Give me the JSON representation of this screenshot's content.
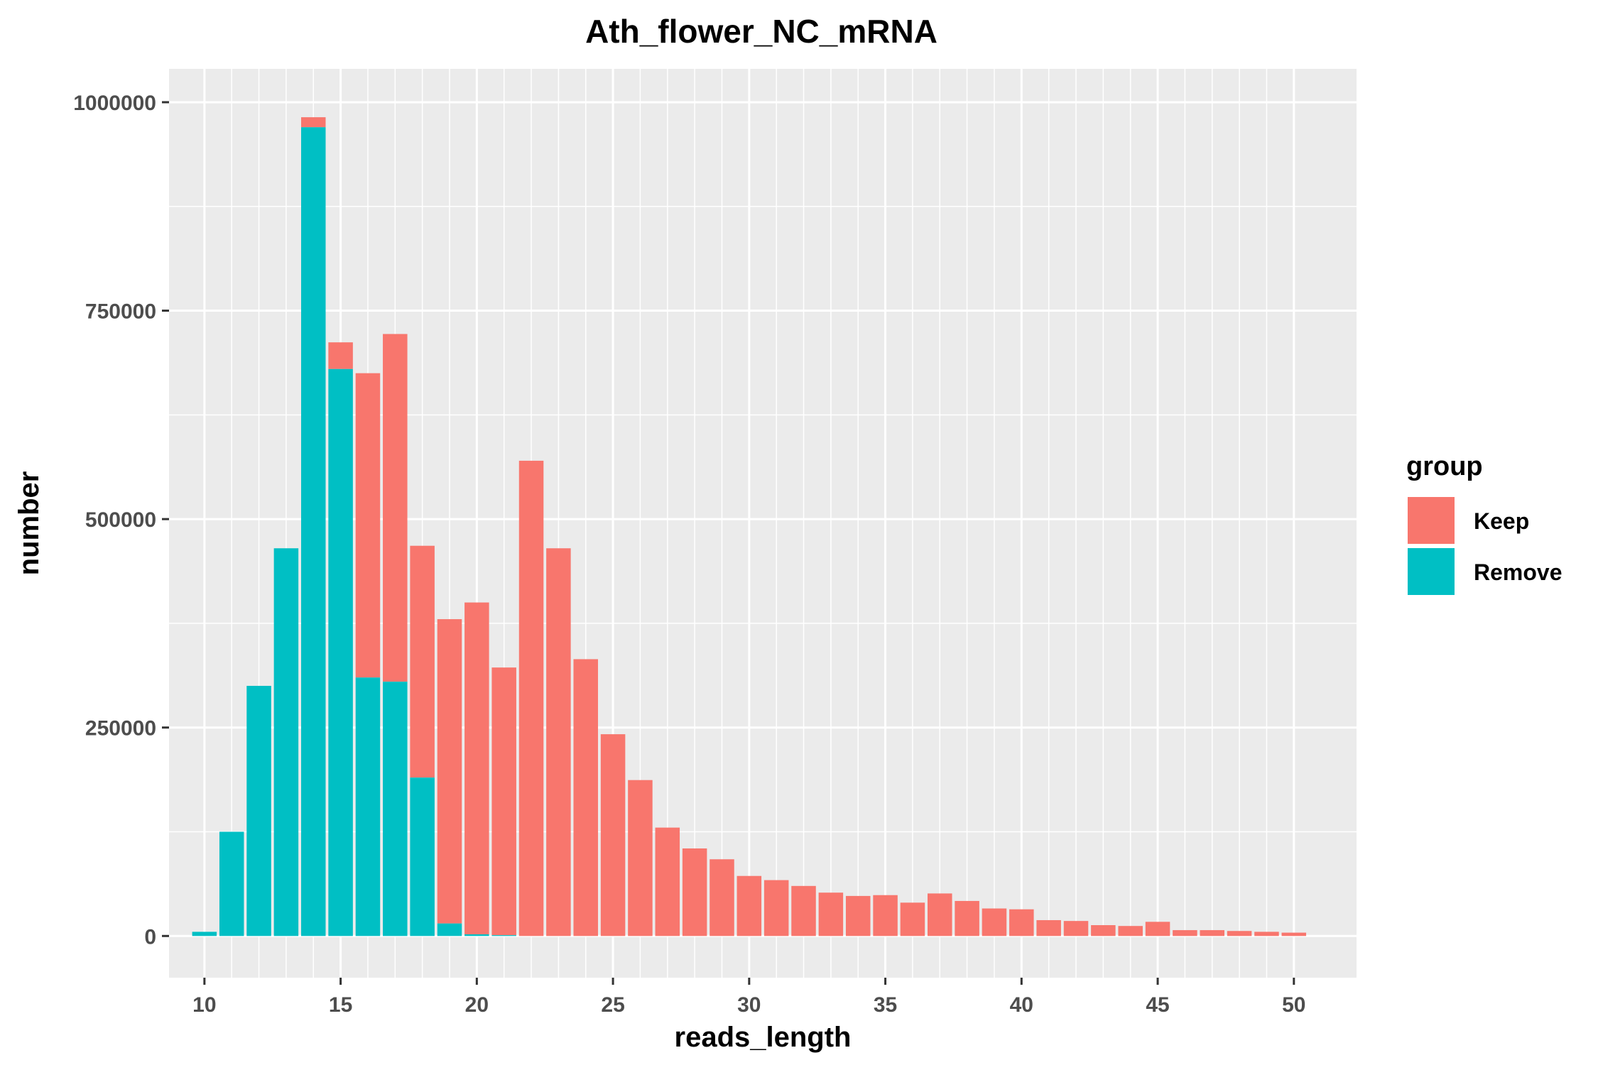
{
  "chart_data": {
    "type": "bar",
    "stacked": true,
    "title": "Ath_flower_NC_mRNA",
    "xlabel": "reads_length",
    "ylabel": "number",
    "x": [
      10,
      11,
      12,
      13,
      14,
      15,
      16,
      17,
      18,
      19,
      20,
      21,
      22,
      23,
      24,
      25,
      26,
      27,
      28,
      29,
      30,
      31,
      32,
      33,
      34,
      35,
      36,
      37,
      38,
      39,
      40,
      41,
      42,
      43,
      44,
      45,
      46,
      47,
      48,
      49,
      50
    ],
    "xlim": [
      8.7,
      52.3
    ],
    "ylim": [
      -50000,
      1040000
    ],
    "xticks": [
      10,
      15,
      20,
      25,
      30,
      35,
      40,
      45,
      50
    ],
    "xtick_labels": [
      "10",
      "15",
      "20",
      "25",
      "30",
      "35",
      "40",
      "45",
      "50"
    ],
    "yticks": [
      0,
      250000,
      500000,
      750000,
      1000000
    ],
    "ytick_labels": [
      "0",
      "250000",
      "500000",
      "750000",
      "1000000"
    ],
    "grid": true,
    "legend": {
      "title": "group",
      "position": "right"
    },
    "series": [
      {
        "name": "Remove",
        "color": "#00BFC4",
        "values": [
          5000,
          125000,
          300000,
          465000,
          970000,
          680000,
          310000,
          305000,
          190000,
          15000,
          2000,
          1000,
          0,
          0,
          0,
          0,
          0,
          0,
          0,
          0,
          0,
          0,
          0,
          0,
          0,
          0,
          0,
          0,
          0,
          0,
          0,
          0,
          0,
          0,
          0,
          0,
          0,
          0,
          0,
          0,
          0
        ]
      },
      {
        "name": "Keep",
        "color": "#F8766D",
        "values": [
          0,
          0,
          0,
          0,
          12000,
          32000,
          365000,
          417000,
          278000,
          365000,
          398000,
          321000,
          570000,
          465000,
          332000,
          242000,
          187000,
          130000,
          105000,
          92000,
          72000,
          67000,
          60000,
          52000,
          48000,
          49000,
          40000,
          51000,
          42000,
          33000,
          32000,
          19000,
          18000,
          13000,
          12000,
          17000,
          7000,
          7000,
          6000,
          5000,
          4000
        ]
      }
    ]
  }
}
